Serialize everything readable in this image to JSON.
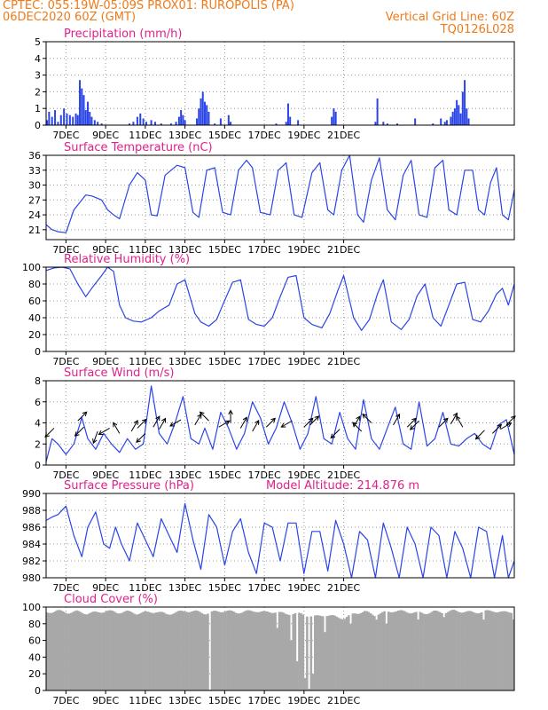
{
  "header": {
    "station": "CPTEC:   055:19W-05:09S   PROX01: RUROPOLIS (PA)",
    "run": "06DEC2020 60Z (GMT)",
    "grid_note": "Vertical Grid Line: 60Z",
    "code": "TQ0126L028"
  },
  "colors": {
    "header": "#ee7a1a",
    "title": "#e0208c",
    "line": "#2a44e8",
    "bars": "#2a44e8",
    "cloud": "#a8a8a8",
    "grid": "#9a9a9a",
    "arrows": "#000000"
  },
  "chart_data": [
    {
      "id": "precip",
      "type": "bar",
      "title": "Precipitation (mm/h)",
      "ylim": [
        0,
        5
      ],
      "yticks": [
        "0",
        "1",
        "2",
        "3",
        "4",
        "5"
      ],
      "xticks": [
        "7DEC",
        "9DEC",
        "11DEC",
        "13DEC",
        "15DEC",
        "17DEC",
        "19DEC",
        "21DEC"
      ],
      "grid": true,
      "bars": [
        [
          0.05,
          0.3
        ],
        [
          0.15,
          0.8
        ],
        [
          0.3,
          0.5
        ],
        [
          0.45,
          0.9
        ],
        [
          0.6,
          0.2
        ],
        [
          0.75,
          0.6
        ],
        [
          0.9,
          1.0
        ],
        [
          1.05,
          0.7
        ],
        [
          1.2,
          0.6
        ],
        [
          1.35,
          0.5
        ],
        [
          1.5,
          0.7
        ],
        [
          1.6,
          0.6
        ],
        [
          1.7,
          2.7
        ],
        [
          1.8,
          2.2
        ],
        [
          1.9,
          1.8
        ],
        [
          2.0,
          0.9
        ],
        [
          2.1,
          1.4
        ],
        [
          2.2,
          0.8
        ],
        [
          2.3,
          0.5
        ],
        [
          2.45,
          0.3
        ],
        [
          2.6,
          0.2
        ],
        [
          2.8,
          0.1
        ],
        [
          4.2,
          0.1
        ],
        [
          4.4,
          0.2
        ],
        [
          4.6,
          0.5
        ],
        [
          4.75,
          0.7
        ],
        [
          4.9,
          0.4
        ],
        [
          5.05,
          0.2
        ],
        [
          5.3,
          0.3
        ],
        [
          5.5,
          0.2
        ],
        [
          5.8,
          0.1
        ],
        [
          6.3,
          0.1
        ],
        [
          6.55,
          0.2
        ],
        [
          6.7,
          0.5
        ],
        [
          6.8,
          0.9
        ],
        [
          6.9,
          0.6
        ],
        [
          7.0,
          0.3
        ],
        [
          7.6,
          0.4
        ],
        [
          7.7,
          1.0
        ],
        [
          7.8,
          1.6
        ],
        [
          7.9,
          2.0
        ],
        [
          8.0,
          1.4
        ],
        [
          8.1,
          1.2
        ],
        [
          8.2,
          0.8
        ],
        [
          8.5,
          0.1
        ],
        [
          8.8,
          0.4
        ],
        [
          9.2,
          0.6
        ],
        [
          9.3,
          0.2
        ],
        [
          11.6,
          0.1
        ],
        [
          12.1,
          0.2
        ],
        [
          12.2,
          1.3
        ],
        [
          12.3,
          0.5
        ],
        [
          12.7,
          0.3
        ],
        [
          14.4,
          0.5
        ],
        [
          14.5,
          1.0
        ],
        [
          14.6,
          0.8
        ],
        [
          16.6,
          0.2
        ],
        [
          16.7,
          1.6
        ],
        [
          17.0,
          0.2
        ],
        [
          17.2,
          0.1
        ],
        [
          17.7,
          0.1
        ],
        [
          18.6,
          0.4
        ],
        [
          19.5,
          0.1
        ],
        [
          19.9,
          0.4
        ],
        [
          20.1,
          0.2
        ],
        [
          20.2,
          0.3
        ],
        [
          20.4,
          0.5
        ],
        [
          20.5,
          0.8
        ],
        [
          20.6,
          1.0
        ],
        [
          20.7,
          1.5
        ],
        [
          20.8,
          1.2
        ],
        [
          20.9,
          0.7
        ],
        [
          21.0,
          2.0
        ],
        [
          21.1,
          2.7
        ],
        [
          21.2,
          1.0
        ],
        [
          21.3,
          0.4
        ]
      ]
    },
    {
      "id": "temp",
      "type": "line",
      "title": "Surface Temperature (nC)",
      "ylim": [
        19,
        36
      ],
      "ytick_values": [
        21,
        24,
        27,
        30,
        33,
        36
      ],
      "yticks": [
        "21",
        "24",
        "27",
        "30",
        "33",
        "36"
      ],
      "xticks": [
        "7DEC",
        "9DEC",
        "11DEC",
        "13DEC",
        "15DEC",
        "17DEC",
        "19DEC",
        "21DEC"
      ],
      "grid": true,
      "x": [
        0,
        0.3,
        0.6,
        1.0,
        1.4,
        1.6,
        2.0,
        2.3,
        2.8,
        3.1,
        3.4,
        3.7,
        4.2,
        4.6,
        5.0,
        5.3,
        5.6,
        6.0,
        6.6,
        7.0,
        7.4,
        7.7,
        8.1,
        8.5,
        8.9,
        9.3,
        9.7,
        10.1,
        10.4,
        10.8,
        11.3,
        11.7,
        12.1,
        12.5,
        12.9,
        13.4,
        13.8,
        14.2,
        14.5,
        14.9,
        15.3,
        15.7,
        16.0,
        16.4,
        16.8,
        17.2,
        17.6,
        18.0,
        18.4,
        18.8,
        19.2,
        19.6,
        20.0,
        20.3,
        20.7,
        21.1,
        21.5,
        21.8,
        22.1,
        22.4,
        22.7,
        23.0,
        23.3,
        23.6
      ],
      "values": [
        22,
        21,
        20.6,
        20.4,
        25,
        26,
        28,
        27.8,
        27,
        25,
        24,
        23.2,
        30,
        32.5,
        31,
        24,
        23.8,
        32,
        34,
        33.5,
        24.5,
        23.5,
        33,
        33.5,
        24.5,
        24,
        33,
        35,
        33.5,
        24.5,
        24,
        33,
        34.5,
        24,
        23.5,
        32.5,
        34.5,
        25,
        24,
        33,
        36,
        24,
        22.5,
        31,
        35.5,
        25,
        23,
        32,
        35,
        24,
        23.5,
        33.5,
        35,
        25,
        24,
        33,
        33,
        25,
        24,
        30.5,
        33.5,
        24,
        23,
        29
      ]
    },
    {
      "id": "rh",
      "type": "line",
      "title": "Relative Humidity (%)",
      "ylim": [
        0,
        100
      ],
      "ytick_values": [
        0,
        20,
        40,
        60,
        80,
        100
      ],
      "yticks": [
        "0",
        "20",
        "40",
        "60",
        "80",
        "100"
      ],
      "xticks": [
        "7DEC",
        "9DEC",
        "11DEC",
        "13DEC",
        "15DEC",
        "17DEC",
        "19DEC",
        "21DEC"
      ],
      "grid": true,
      "x": [
        0,
        0.4,
        0.8,
        1.2,
        1.6,
        2.0,
        2.3,
        2.8,
        3.1,
        3.4,
        3.7,
        4.0,
        4.4,
        4.8,
        5.3,
        5.7,
        6.2,
        6.6,
        7.0,
        7.5,
        7.8,
        8.2,
        8.6,
        8.9,
        9.4,
        9.8,
        10.2,
        10.6,
        11.0,
        11.4,
        11.8,
        12.2,
        12.6,
        13.0,
        13.4,
        13.9,
        14.3,
        14.7,
        15.0,
        15.5,
        15.9,
        16.3,
        16.7,
        17.0,
        17.4,
        17.9,
        18.3,
        18.7,
        19.1,
        19.5,
        19.9,
        20.3,
        20.7,
        21.1,
        21.5,
        21.9,
        22.3,
        22.7,
        23.0,
        23.3,
        23.6
      ],
      "values": [
        96,
        99,
        100,
        98,
        80,
        65,
        75,
        90,
        100,
        95,
        55,
        40,
        36,
        35,
        40,
        48,
        55,
        80,
        85,
        45,
        35,
        30,
        38,
        55,
        82,
        85,
        38,
        32,
        30,
        40,
        65,
        88,
        90,
        40,
        32,
        28,
        45,
        72,
        90,
        40,
        25,
        38,
        68,
        85,
        35,
        26,
        38,
        66,
        80,
        40,
        30,
        55,
        80,
        82,
        38,
        35,
        48,
        68,
        75,
        55,
        80
      ]
    },
    {
      "id": "wind",
      "type": "line",
      "title": "Surface Wind (m/s)",
      "ylim": [
        0,
        8
      ],
      "ytick_values": [
        0,
        2,
        4,
        6,
        8
      ],
      "yticks": [
        "0",
        "2",
        "4",
        "6",
        "8"
      ],
      "xticks": [
        "7DEC",
        "9DEC",
        "11DEC",
        "13DEC",
        "15DEC",
        "17DEC",
        "19DEC",
        "21DEC"
      ],
      "grid": true,
      "x": [
        0,
        0.3,
        0.6,
        1.0,
        1.4,
        1.8,
        2.1,
        2.5,
        2.9,
        3.3,
        3.7,
        4.1,
        4.5,
        4.9,
        5.3,
        5.7,
        6.1,
        6.5,
        6.9,
        7.3,
        7.7,
        8.0,
        8.4,
        8.8,
        9.2,
        9.6,
        10.0,
        10.4,
        10.8,
        11.2,
        11.6,
        12.0,
        12.4,
        12.8,
        13.2,
        13.6,
        14.0,
        14.4,
        14.8,
        15.2,
        15.6,
        16.0,
        16.4,
        16.8,
        17.2,
        17.6,
        18.0,
        18.4,
        18.8,
        19.2,
        19.6,
        20.0,
        20.4,
        20.8,
        21.2,
        21.6,
        22.0,
        22.4,
        22.8,
        23.2,
        23.6
      ],
      "values": [
        0.3,
        2.5,
        2.0,
        1.0,
        2.0,
        4.5,
        2.5,
        1.5,
        3.0,
        2.0,
        1.2,
        2.5,
        1.5,
        2.0,
        7.5,
        3.0,
        2.0,
        4.0,
        6.5,
        2.5,
        2.0,
        3.5,
        1.5,
        5.0,
        3.5,
        1.5,
        3.0,
        6.0,
        4.5,
        2.0,
        3.5,
        6.0,
        4.0,
        1.5,
        3.0,
        6.5,
        2.5,
        2.0,
        5.0,
        2.5,
        1.5,
        6.2,
        2.5,
        1.5,
        3.5,
        5.5,
        2.0,
        1.5,
        6.0,
        1.8,
        2.5,
        5.0,
        2.0,
        1.8,
        2.5,
        3.0,
        2.0,
        1.5,
        3.8,
        4.3,
        1.0
      ],
      "arrows": [
        [
          0.4,
          3.5,
          225
        ],
        [
          1.6,
          4.2,
          45
        ],
        [
          1.9,
          3.6,
          225
        ],
        [
          2.6,
          3.2,
          250
        ],
        [
          3.2,
          3.5,
          210
        ],
        [
          3.7,
          3.0,
          120
        ],
        [
          4.3,
          3.2,
          60
        ],
        [
          4.6,
          3.5,
          45
        ],
        [
          5.0,
          3.0,
          225
        ],
        [
          5.4,
          3.6,
          60
        ],
        [
          5.7,
          3.4,
          60
        ],
        [
          6.8,
          4.3,
          210
        ],
        [
          7.5,
          3.8,
          60
        ],
        [
          8.2,
          4.2,
          135
        ],
        [
          8.7,
          3.6,
          30
        ],
        [
          9.3,
          4.0,
          90
        ],
        [
          9.8,
          3.5,
          60
        ],
        [
          10.4,
          3.2,
          60
        ],
        [
          11.1,
          3.6,
          45
        ],
        [
          12.4,
          4.2,
          210
        ],
        [
          13.0,
          3.6,
          45
        ],
        [
          13.3,
          3.8,
          45
        ],
        [
          14.8,
          3.4,
          225
        ],
        [
          15.5,
          3.6,
          60
        ],
        [
          15.9,
          3.2,
          135
        ],
        [
          16.4,
          4.0,
          135
        ],
        [
          17.5,
          3.8,
          60
        ],
        [
          18.2,
          3.6,
          45
        ],
        [
          18.8,
          4.2,
          225
        ],
        [
          19.8,
          3.6,
          45
        ],
        [
          20.4,
          3.9,
          60
        ],
        [
          21.0,
          3.6,
          120
        ],
        [
          22.1,
          3.3,
          225
        ],
        [
          22.5,
          3.0,
          45
        ],
        [
          22.9,
          3.4,
          30
        ],
        [
          23.2,
          3.8,
          45
        ]
      ]
    },
    {
      "id": "pressure",
      "type": "line",
      "title": "Surface Pressure (hPa)",
      "annotation": "Model Altitude: 214.876 m",
      "ylim": [
        980,
        990
      ],
      "ytick_values": [
        980,
        982,
        984,
        986,
        988,
        990
      ],
      "yticks": [
        "980",
        "982",
        "984",
        "986",
        "988",
        "990"
      ],
      "xticks": [
        "7DEC",
        "9DEC",
        "11DEC",
        "13DEC",
        "15DEC",
        "17DEC",
        "19DEC",
        "21DEC"
      ],
      "grid": true,
      "x": [
        0,
        0.3,
        0.6,
        1.0,
        1.4,
        1.8,
        2.1,
        2.5,
        2.9,
        3.2,
        3.5,
        3.8,
        4.2,
        4.6,
        5.0,
        5.4,
        5.8,
        6.2,
        6.6,
        7.0,
        7.4,
        7.8,
        8.2,
        8.6,
        9.0,
        9.4,
        9.8,
        10.2,
        10.6,
        11.0,
        11.4,
        11.8,
        12.2,
        12.6,
        13.0,
        13.4,
        13.8,
        14.2,
        14.6,
        15.0,
        15.4,
        15.8,
        16.2,
        16.6,
        17.0,
        17.4,
        17.8,
        18.2,
        18.6,
        19.0,
        19.4,
        19.8,
        20.2,
        20.6,
        21.0,
        21.4,
        21.8,
        22.2,
        22.6,
        23.0,
        23.3,
        23.6
      ],
      "values": [
        986.8,
        987.2,
        987.5,
        988.5,
        985.0,
        982.5,
        986.0,
        987.8,
        984.0,
        983.5,
        986.0,
        984.0,
        982.0,
        986.5,
        984.5,
        982.5,
        987.0,
        985.0,
        983.0,
        988.8,
        984.5,
        981.0,
        987.5,
        986.0,
        981.5,
        985.5,
        987.0,
        983.0,
        980.5,
        986.5,
        986.0,
        982.0,
        986.5,
        986.5,
        980.5,
        985.5,
        985.5,
        980.8,
        986.8,
        984.0,
        980.0,
        985.5,
        984.5,
        980.0,
        986.5,
        983.5,
        980.0,
        986.0,
        984.0,
        980.0,
        986.0,
        985.0,
        980.0,
        985.5,
        983.5,
        980.0,
        986.0,
        985.5,
        980.0,
        985.0,
        980.0,
        982.0
      ]
    },
    {
      "id": "cloud",
      "type": "area",
      "title": "Cloud Cover (%)",
      "ylim": [
        0,
        100
      ],
      "ytick_values": [
        0,
        20,
        40,
        60,
        80,
        100
      ],
      "yticks": [
        "0",
        "20",
        "40",
        "60",
        "80",
        "100"
      ],
      "xticks": [
        "7DEC",
        "9DEC",
        "11DEC",
        "13DEC",
        "15DEC",
        "17DEC",
        "19DEC",
        "21DEC"
      ],
      "grid": true,
      "x": [
        0,
        0.5,
        1.0,
        1.5,
        2.0,
        2.5,
        3.0,
        3.5,
        4.0,
        4.5,
        5.0,
        5.5,
        6.0,
        6.5,
        7.0,
        7.5,
        8.0,
        8.5,
        9.0,
        9.5,
        10.0,
        10.5,
        11.0,
        11.5,
        12.0,
        12.5,
        13.0,
        13.5,
        14.0,
        14.5,
        15.0,
        15.5,
        16.0,
        16.5,
        17.0,
        17.5,
        18.0,
        18.5,
        19.0,
        19.5,
        20.0,
        20.5,
        21.0,
        21.5,
        22.0,
        22.5,
        23.0,
        23.5,
        23.6
      ],
      "values": [
        95,
        97,
        95,
        96,
        94,
        95,
        97,
        95,
        96,
        94,
        95,
        96,
        93,
        95,
        97,
        96,
        94,
        96,
        97,
        95,
        96,
        97,
        95,
        96,
        93,
        94,
        92,
        90,
        92,
        90,
        88,
        94,
        96,
        92,
        95,
        97,
        96,
        95,
        94,
        96,
        95,
        97,
        96,
        95,
        96,
        97,
        95,
        96,
        88
      ],
      "dips": [
        [
          8.2,
          1
        ],
        [
          11.6,
          75
        ],
        [
          12.3,
          60
        ],
        [
          12.6,
          35
        ],
        [
          13.0,
          15
        ],
        [
          13.2,
          2
        ],
        [
          13.4,
          20
        ],
        [
          14.0,
          70
        ],
        [
          15.3,
          80
        ],
        [
          16.6,
          85
        ],
        [
          17.1,
          80
        ],
        [
          18.7,
          85
        ],
        [
          20.0,
          88
        ],
        [
          22.0,
          85
        ],
        [
          23.5,
          85
        ]
      ]
    }
  ]
}
